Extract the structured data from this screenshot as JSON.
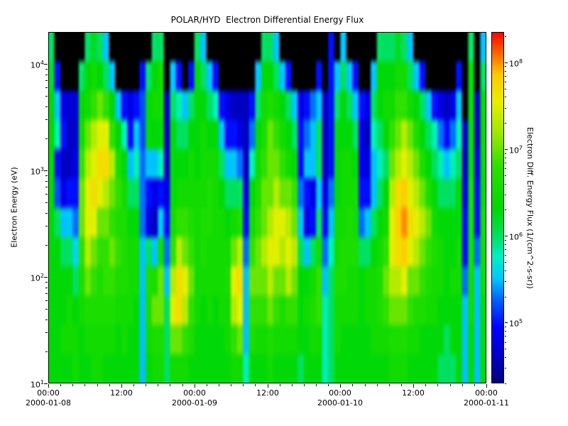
{
  "figure": {
    "background": "#ffffff",
    "plot_background": "#000000"
  },
  "chart_data": {
    "type": "heatmap",
    "title": "POLAR/HYD  Electron Differential Energy Flux",
    "x_axis": {
      "range_hours": [
        0,
        72
      ],
      "major_ticks": [
        {
          "hour": 0,
          "label": "00:00"
        },
        {
          "hour": 12,
          "label": "12:00"
        },
        {
          "hour": 24,
          "label": "00:00"
        },
        {
          "hour": 36,
          "label": "12:00"
        },
        {
          "hour": 48,
          "label": "00:00"
        },
        {
          "hour": 60,
          "label": "12:00"
        },
        {
          "hour": 72,
          "label": "00:00"
        }
      ],
      "date_labels": [
        {
          "hour": 0,
          "label": "2000-01-08"
        },
        {
          "hour": 24,
          "label": "2000-01-09"
        },
        {
          "hour": 48,
          "label": "2000-01-10"
        },
        {
          "hour": 72,
          "label": "2000-01-11"
        }
      ],
      "minor_tick_step_hours": 2
    },
    "y_axis": {
      "label": "Electron Energy (eV)",
      "scale": "log",
      "log10_range": [
        1.0,
        4.3
      ],
      "major_tick_exponents": [
        1,
        2,
        3,
        4
      ]
    },
    "colorbar": {
      "title": "Electron Diff. Energy Flux (1/(cm^2-s-sr))",
      "scale": "log",
      "log10_range": [
        4.3,
        8.35
      ],
      "major_tick_exponents": [
        5,
        6,
        7,
        8
      ],
      "gradient_stops": [
        {
          "t": 0.0,
          "color": "#000078"
        },
        {
          "t": 0.08,
          "color": "#0000C8"
        },
        {
          "t": 0.16,
          "color": "#0000FF"
        },
        {
          "t": 0.24,
          "color": "#0064FF"
        },
        {
          "t": 0.3,
          "color": "#00C8FF"
        },
        {
          "t": 0.36,
          "color": "#00F0C8"
        },
        {
          "t": 0.42,
          "color": "#00E060"
        },
        {
          "t": 0.5,
          "color": "#00D800"
        },
        {
          "t": 0.62,
          "color": "#30E000"
        },
        {
          "t": 0.7,
          "color": "#90E800"
        },
        {
          "t": 0.8,
          "color": "#E8F000"
        },
        {
          "t": 0.88,
          "color": "#FFC800"
        },
        {
          "t": 0.94,
          "color": "#FF6400"
        },
        {
          "t": 1.0,
          "color": "#FF0000"
        }
      ]
    },
    "flux_grid": {
      "units": "log10 of differential energy flux; 0 = no data (black)",
      "hours_per_column": 1,
      "rows_top_to_bottom": true,
      "row_log10_energy_top": 4.3,
      "row_log10_energy_bottom": 1.0,
      "row_count": 12,
      "columns": [
        [
          6.0,
          6.2,
          6.3,
          6.3,
          6.3,
          6.3,
          6.3,
          6.3,
          6.3,
          6.3,
          6.3,
          6.3
        ],
        [
          0,
          5.0,
          5.5,
          5.8,
          5.0,
          5.2,
          6.0,
          6.3,
          6.3,
          6.3,
          6.3,
          6.3
        ],
        [
          0,
          0,
          4.8,
          5.0,
          4.6,
          4.8,
          5.5,
          6.0,
          6.3,
          6.3,
          6.5,
          6.3
        ],
        [
          0,
          0,
          4.7,
          4.6,
          4.6,
          5.0,
          5.5,
          6.0,
          6.3,
          6.5,
          6.5,
          6.3
        ],
        [
          0,
          0,
          4.7,
          4.7,
          4.8,
          5.0,
          5.3,
          5.6,
          6.0,
          6.3,
          6.5,
          6.5
        ],
        [
          0,
          6.0,
          6.3,
          6.5,
          6.8,
          7.0,
          7.0,
          6.8,
          6.6,
          6.5,
          6.3,
          6.3
        ],
        [
          6.0,
          6.3,
          6.5,
          7.0,
          7.3,
          7.5,
          7.5,
          7.3,
          7.0,
          6.6,
          6.5,
          6.3
        ],
        [
          6.2,
          6.5,
          6.8,
          7.3,
          7.5,
          7.7,
          7.5,
          7.0,
          6.8,
          6.6,
          6.5,
          6.5
        ],
        [
          6.0,
          6.3,
          7.0,
          7.5,
          7.7,
          7.5,
          7.0,
          6.8,
          6.6,
          6.6,
          6.5,
          6.5
        ],
        [
          5.5,
          6.0,
          6.8,
          7.5,
          7.7,
          7.3,
          7.0,
          6.8,
          6.8,
          6.6,
          6.5,
          6.3
        ],
        [
          0,
          5.5,
          6.3,
          6.8,
          7.3,
          7.0,
          6.8,
          7.0,
          6.8,
          6.6,
          6.5,
          6.3
        ],
        [
          0,
          0,
          5.5,
          6.3,
          6.6,
          6.8,
          6.6,
          6.8,
          6.6,
          6.5,
          6.3,
          6.3
        ],
        [
          0,
          0,
          5.0,
          5.8,
          6.3,
          6.5,
          6.6,
          6.6,
          6.6,
          6.5,
          6.5,
          6.3
        ],
        [
          0,
          0,
          4.8,
          5.0,
          5.5,
          6.0,
          6.3,
          6.5,
          6.5,
          6.5,
          6.3,
          6.3
        ],
        [
          0,
          0,
          5.0,
          5.5,
          5.8,
          6.0,
          6.3,
          6.5,
          6.5,
          6.3,
          6.3,
          6.3
        ],
        [
          0,
          5.0,
          5.2,
          5.2,
          5.3,
          5.3,
          5.3,
          5.5,
          5.5,
          5.5,
          5.5,
          5.5
        ],
        [
          0,
          6.0,
          6.3,
          6.3,
          5.5,
          5.0,
          4.8,
          6.0,
          6.6,
          6.6,
          6.5,
          6.3
        ],
        [
          6.0,
          6.3,
          6.5,
          6.3,
          5.5,
          4.8,
          4.6,
          5.5,
          6.6,
          7.0,
          6.6,
          6.5
        ],
        [
          6.0,
          6.5,
          6.5,
          6.3,
          5.8,
          5.0,
          5.5,
          6.5,
          7.0,
          7.0,
          6.6,
          6.5
        ],
        [
          0,
          0,
          4.6,
          4.6,
          4.6,
          4.8,
          5.0,
          5.3,
          5.5,
          6.0,
          6.0,
          6.0
        ],
        [
          0,
          5.5,
          6.0,
          6.3,
          6.3,
          6.3,
          6.5,
          6.8,
          7.3,
          7.5,
          7.0,
          6.5
        ],
        [
          0,
          5.0,
          5.8,
          6.0,
          6.3,
          6.5,
          6.8,
          7.3,
          7.7,
          7.7,
          7.0,
          6.5
        ],
        [
          0,
          0,
          5.5,
          6.0,
          6.3,
          6.5,
          6.8,
          7.0,
          7.5,
          7.3,
          6.8,
          6.5
        ],
        [
          0,
          5.0,
          6.0,
          6.3,
          6.5,
          6.5,
          6.6,
          6.8,
          7.0,
          6.8,
          6.6,
          6.3
        ],
        [
          6.0,
          6.3,
          6.3,
          6.3,
          6.3,
          6.5,
          6.5,
          6.5,
          6.5,
          6.5,
          6.3,
          6.3
        ],
        [
          5.5,
          6.0,
          6.3,
          6.5,
          6.5,
          6.5,
          6.6,
          6.6,
          6.5,
          6.3,
          6.3,
          6.3
        ],
        [
          0,
          5.5,
          6.0,
          6.3,
          6.5,
          6.6,
          6.6,
          6.5,
          6.5,
          6.5,
          6.3,
          6.3
        ],
        [
          0,
          5.0,
          5.8,
          6.3,
          6.5,
          6.5,
          6.5,
          6.5,
          6.5,
          6.3,
          6.3,
          6.3
        ],
        [
          0,
          0,
          5.0,
          5.5,
          6.0,
          6.3,
          6.5,
          6.5,
          6.5,
          6.5,
          6.3,
          6.3
        ],
        [
          0,
          0,
          4.8,
          5.0,
          5.5,
          6.0,
          6.3,
          6.5,
          6.6,
          6.5,
          6.5,
          6.3
        ],
        [
          0,
          0,
          4.6,
          5.0,
          5.5,
          6.0,
          6.5,
          7.0,
          7.5,
          7.3,
          6.8,
          6.5
        ],
        [
          0,
          0,
          4.6,
          4.8,
          5.3,
          6.0,
          6.6,
          7.3,
          7.7,
          7.5,
          7.0,
          6.5
        ],
        [
          0,
          0,
          4.6,
          4.6,
          4.6,
          4.8,
          5.0,
          5.3,
          5.5,
          5.5,
          5.5,
          5.8
        ],
        [
          0,
          0,
          5.0,
          5.3,
          5.8,
          6.3,
          6.5,
          6.8,
          7.0,
          6.8,
          6.6,
          6.3
        ],
        [
          0,
          5.5,
          6.0,
          6.3,
          6.5,
          6.6,
          6.8,
          7.0,
          7.0,
          6.8,
          6.5,
          6.3
        ],
        [
          6.0,
          6.3,
          6.5,
          6.6,
          6.8,
          7.0,
          7.0,
          7.3,
          7.0,
          6.8,
          6.5,
          6.3
        ],
        [
          6.0,
          6.3,
          6.6,
          7.0,
          7.0,
          7.0,
          7.3,
          7.5,
          7.3,
          7.0,
          6.6,
          6.5
        ],
        [
          5.5,
          6.0,
          6.5,
          6.8,
          7.0,
          7.3,
          7.5,
          7.5,
          7.0,
          6.8,
          6.5,
          6.3
        ],
        [
          0,
          5.5,
          6.3,
          6.5,
          6.8,
          7.0,
          7.5,
          7.3,
          7.0,
          6.6,
          6.5,
          6.3
        ],
        [
          0,
          5.0,
          6.0,
          6.3,
          6.5,
          7.0,
          7.3,
          7.5,
          7.3,
          6.8,
          6.5,
          6.3
        ],
        [
          0,
          0,
          5.5,
          6.0,
          6.3,
          6.8,
          7.0,
          7.3,
          7.0,
          6.8,
          6.5,
          6.3
        ],
        [
          0,
          0,
          4.8,
          5.0,
          5.0,
          5.3,
          5.5,
          6.0,
          6.3,
          6.3,
          6.3,
          6.0
        ],
        [
          0,
          0,
          5.0,
          5.3,
          5.5,
          5.0,
          4.8,
          5.5,
          6.3,
          6.5,
          6.3,
          6.3
        ],
        [
          0,
          0,
          5.3,
          5.5,
          5.5,
          4.8,
          5.0,
          6.0,
          6.5,
          6.6,
          6.5,
          6.3
        ],
        [
          0,
          5.0,
          5.5,
          6.0,
          6.0,
          5.5,
          6.0,
          6.5,
          6.8,
          6.8,
          6.5,
          6.3
        ],
        [
          0,
          0,
          4.6,
          4.6,
          4.6,
          4.8,
          5.0,
          5.3,
          5.5,
          5.8,
          5.8,
          5.8
        ],
        [
          5.0,
          5.0,
          5.0,
          5.0,
          5.0,
          5.3,
          5.5,
          5.8,
          6.0,
          6.0,
          6.0,
          6.0
        ],
        [
          0,
          5.5,
          6.0,
          6.3,
          6.3,
          6.3,
          6.5,
          6.5,
          6.6,
          6.5,
          6.5,
          6.3
        ],
        [
          5.5,
          6.0,
          6.3,
          6.3,
          6.5,
          6.5,
          6.5,
          6.6,
          6.6,
          6.5,
          6.3,
          6.3
        ],
        [
          0,
          5.5,
          6.0,
          6.3,
          6.5,
          6.5,
          6.6,
          6.6,
          6.5,
          6.5,
          6.3,
          6.3
        ],
        [
          0,
          5.0,
          5.5,
          6.0,
          6.3,
          6.5,
          6.5,
          6.6,
          6.5,
          6.5,
          6.3,
          6.3
        ],
        [
          0,
          0,
          5.0,
          4.8,
          4.8,
          5.0,
          5.3,
          6.0,
          6.3,
          6.3,
          6.3,
          6.3
        ],
        [
          0,
          0,
          4.8,
          4.6,
          4.8,
          5.0,
          5.5,
          6.0,
          6.5,
          6.5,
          6.3,
          6.3
        ],
        [
          0,
          5.5,
          6.0,
          5.8,
          5.5,
          5.5,
          6.0,
          6.3,
          6.5,
          6.5,
          6.5,
          6.3
        ],
        [
          6.0,
          6.3,
          6.3,
          6.0,
          5.8,
          6.0,
          6.3,
          6.5,
          6.6,
          6.6,
          6.5,
          6.3
        ],
        [
          6.0,
          6.3,
          6.5,
          6.3,
          6.0,
          6.3,
          6.5,
          6.8,
          7.0,
          6.8,
          6.5,
          6.3
        ],
        [
          6.0,
          6.3,
          6.5,
          6.8,
          7.0,
          7.3,
          7.5,
          7.5,
          7.3,
          7.0,
          6.6,
          6.5
        ],
        [
          6.2,
          6.5,
          6.8,
          7.0,
          7.3,
          7.7,
          7.8,
          7.7,
          7.3,
          7.0,
          6.6,
          6.5
        ],
        [
          6.0,
          6.5,
          6.8,
          7.3,
          7.5,
          7.8,
          8.0,
          7.8,
          7.5,
          7.0,
          6.6,
          6.5
        ],
        [
          5.5,
          6.0,
          6.5,
          7.0,
          7.3,
          7.5,
          7.7,
          7.5,
          7.0,
          6.8,
          6.5,
          6.3
        ],
        [
          0,
          5.5,
          6.3,
          6.6,
          7.0,
          7.3,
          7.5,
          7.3,
          7.0,
          6.6,
          6.5,
          6.3
        ],
        [
          0,
          5.0,
          6.0,
          6.3,
          6.6,
          7.0,
          7.3,
          7.0,
          6.8,
          6.6,
          6.3,
          6.3
        ],
        [
          0,
          0,
          5.5,
          6.0,
          6.3,
          6.6,
          7.0,
          6.8,
          6.6,
          6.5,
          6.3,
          6.3
        ],
        [
          0,
          0,
          5.0,
          5.8,
          6.0,
          6.3,
          6.5,
          6.6,
          6.5,
          6.5,
          6.3,
          6.3
        ],
        [
          0,
          0,
          4.8,
          5.3,
          5.8,
          6.0,
          6.3,
          6.5,
          6.5,
          6.3,
          6.3,
          6.0
        ],
        [
          0,
          0,
          4.6,
          5.0,
          5.5,
          6.0,
          6.3,
          6.3,
          6.3,
          6.3,
          6.0,
          6.0
        ],
        [
          0,
          0,
          4.8,
          5.3,
          5.8,
          6.0,
          6.3,
          6.3,
          6.5,
          6.3,
          6.3,
          6.0
        ],
        [
          0,
          5.0,
          5.5,
          5.8,
          6.0,
          6.3,
          6.3,
          6.5,
          6.5,
          6.3,
          6.3,
          6.3
        ],
        [
          0,
          0,
          0,
          4.6,
          4.6,
          4.8,
          5.0,
          5.0,
          5.3,
          5.5,
          5.5,
          5.5
        ],
        [
          6.0,
          6.3,
          6.3,
          6.3,
          6.3,
          6.5,
          6.5,
          6.5,
          6.5,
          6.5,
          6.3,
          6.3
        ],
        [
          0,
          0,
          4.6,
          4.6,
          4.8,
          5.0,
          5.0,
          5.3,
          5.5,
          5.5,
          5.5,
          5.5
        ],
        [
          5.5,
          6.0,
          6.3,
          6.3,
          6.3,
          6.3,
          6.5,
          6.5,
          6.5,
          6.3,
          6.3,
          6.3
        ]
      ]
    }
  }
}
